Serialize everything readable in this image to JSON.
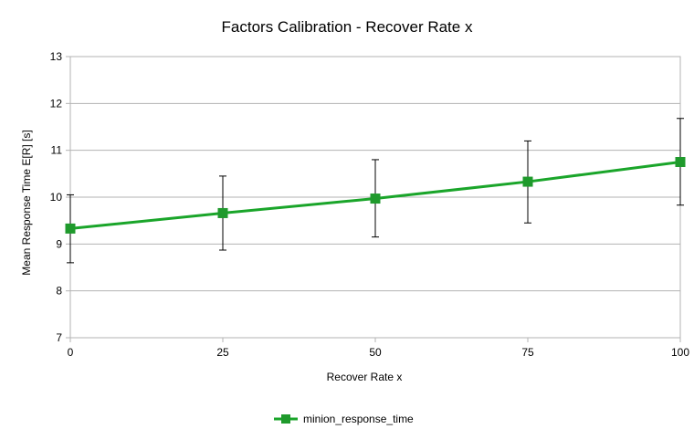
{
  "chart_data": {
    "type": "line",
    "title": "Factors Calibration - Recover Rate x",
    "xlabel": "Recover Rate x",
    "ylabel": "Mean Response Time E[R] [s]",
    "x": [
      0,
      25,
      50,
      75,
      100
    ],
    "x_tick_labels": [
      "0",
      "25",
      "50",
      "75",
      "100"
    ],
    "ylim": [
      7,
      13
    ],
    "y_ticks": [
      7,
      8,
      9,
      10,
      11,
      12,
      13
    ],
    "y_tick_labels": [
      "7",
      "8",
      "9",
      "10",
      "11",
      "12",
      "13"
    ],
    "grid": "horizontal",
    "legend_position": "bottom",
    "series": [
      {
        "name": "minion_response_time",
        "color": "#1aa52a",
        "marker_color": "#1f9a2c",
        "values": [
          9.33,
          9.66,
          9.97,
          10.33,
          10.75
        ],
        "error_low": [
          8.6,
          8.87,
          9.15,
          9.45,
          9.83
        ],
        "error_high": [
          10.05,
          10.45,
          10.8,
          11.2,
          11.68
        ]
      }
    ]
  }
}
